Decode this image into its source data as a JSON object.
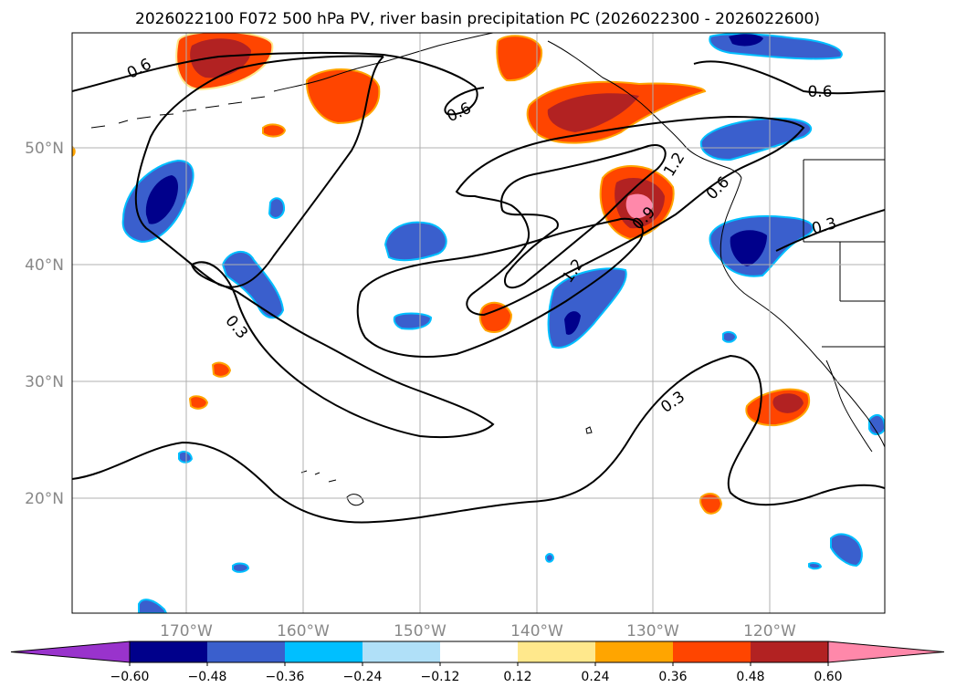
{
  "title": "2026022100 F072 500 hPa PV, river basin precipitation PC (2026022300 - 2026022600)",
  "lat_labels": [
    "50°N",
    "40°N",
    "30°N",
    "20°N"
  ],
  "lon_labels": [
    "170°W",
    "160°W",
    "150°W",
    "140°W",
    "130°W",
    "120°W"
  ],
  "colorbar": {
    "tick_labels": [
      "−0.60",
      "−0.48",
      "−0.36",
      "−0.24",
      "−0.12",
      "0.12",
      "0.24",
      "0.36",
      "0.48",
      "0.60"
    ],
    "colors": [
      "#9933cc",
      "#00008b",
      "#3a5fcd",
      "#00bfff",
      "#b0e0f8",
      "#ffffff",
      "#ffe88c",
      "#ffa500",
      "#ff4500",
      "#b22222",
      "#ff88aa"
    ]
  },
  "contour_labels": {
    "c1": "0.6",
    "c2": "0.6",
    "c3": "0.6",
    "c4": "1.2",
    "c5": "0.9",
    "c6": "0.6",
    "c7": "0.3",
    "c8": "1.2",
    "c9": "0.3",
    "c10": "0.3"
  },
  "colors": {
    "land_border": "#000000",
    "gridline": "#b0b0b0"
  }
}
